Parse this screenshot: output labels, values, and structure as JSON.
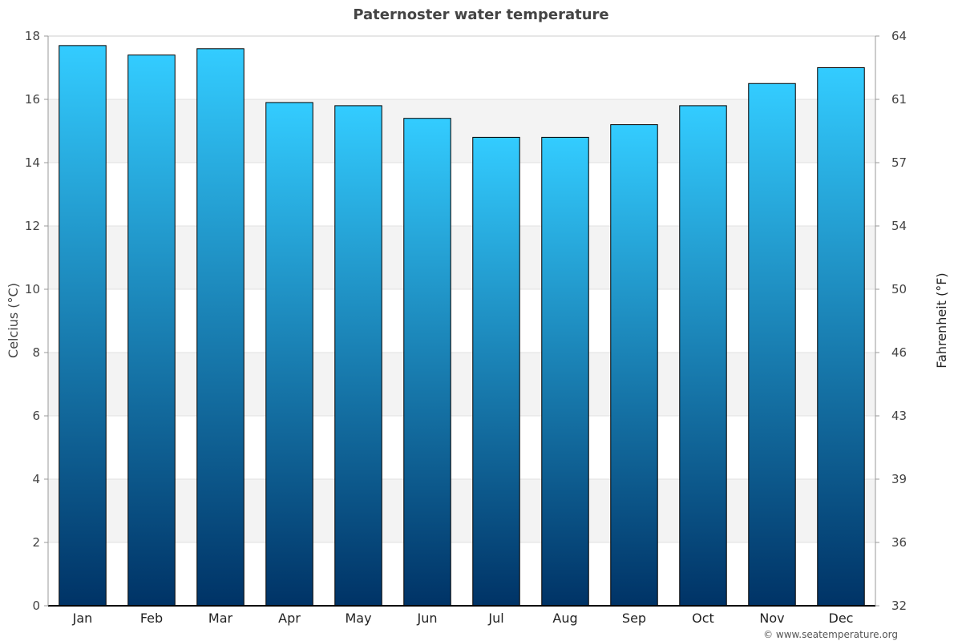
{
  "chart_data": {
    "type": "bar",
    "title": "Paternoster water temperature",
    "categories": [
      "Jan",
      "Feb",
      "Mar",
      "Apr",
      "May",
      "Jun",
      "Jul",
      "Aug",
      "Sep",
      "Oct",
      "Nov",
      "Dec"
    ],
    "series": [
      {
        "values": [
          17.7,
          17.4,
          17.6,
          15.9,
          15.8,
          15.4,
          14.8,
          14.8,
          15.2,
          15.8,
          16.5,
          17.0
        ]
      }
    ],
    "ylabel": "Celcius (°C)",
    "ylabel_right": "Fahrenheit (°F)",
    "ylim": [
      0,
      18
    ],
    "yticks": [
      "0",
      "2",
      "4",
      "6",
      "8",
      "10",
      "12",
      "14",
      "16",
      "18"
    ],
    "ylim_right": [
      32,
      64
    ],
    "yticks_right": [
      "32",
      "36",
      "39",
      "43",
      "46",
      "50",
      "54",
      "57",
      "61",
      "64"
    ],
    "grid": true,
    "bar_gradient": [
      "#33ccff",
      "#003366"
    ]
  },
  "credit": "© www.seatemperature.org"
}
